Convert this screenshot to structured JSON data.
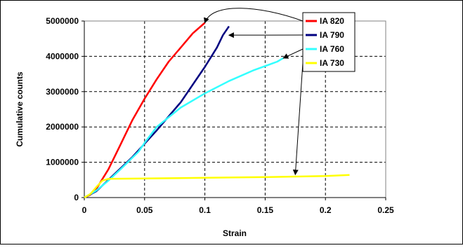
{
  "chart_data": {
    "type": "line",
    "title": "",
    "xlabel": "Strain",
    "ylabel": "Cumulative counts",
    "xlim": [
      0,
      0.25
    ],
    "ylim": [
      0,
      5000000
    ],
    "x_ticks": [
      0,
      0.05,
      0.1,
      0.15,
      0.2,
      0.25
    ],
    "x_tick_labels": [
      "0",
      "0.05",
      "0.1",
      "0.15",
      "0.2",
      "0.25"
    ],
    "y_ticks": [
      0,
      1000000,
      2000000,
      3000000,
      4000000,
      5000000
    ],
    "y_tick_labels": [
      "0",
      "1000000",
      "2000000",
      "3000000",
      "4000000",
      "5000000"
    ],
    "grid": "dashed",
    "legend_position": "top-right",
    "series": [
      {
        "name": "IA 820",
        "color": "#ff0000",
        "x": [
          0,
          0.005,
          0.01,
          0.02,
          0.03,
          0.04,
          0.05,
          0.06,
          0.07,
          0.08,
          0.09,
          0.1
        ],
        "y": [
          0,
          80000,
          250000,
          800000,
          1500000,
          2200000,
          2800000,
          3350000,
          3850000,
          4250000,
          4650000,
          4950000
        ]
      },
      {
        "name": "IA 790",
        "color": "#000080",
        "x": [
          0,
          0.01,
          0.02,
          0.04,
          0.06,
          0.08,
          0.1,
          0.11,
          0.115,
          0.12
        ],
        "y": [
          0,
          180000,
          500000,
          1150000,
          1900000,
          2700000,
          3700000,
          4250000,
          4600000,
          4850000
        ]
      },
      {
        "name": "IA 760",
        "color": "#33ffff",
        "x": [
          0,
          0.01,
          0.02,
          0.03,
          0.045,
          0.05,
          0.06,
          0.08,
          0.1,
          0.12,
          0.14,
          0.16,
          0.165
        ],
        "y": [
          0,
          200000,
          480000,
          800000,
          1300000,
          1550000,
          2000000,
          2550000,
          2950000,
          3300000,
          3600000,
          3850000,
          3950000
        ]
      },
      {
        "name": "IA 730",
        "color": "#ffff00",
        "x": [
          0,
          0.005,
          0.01,
          0.015,
          0.02,
          0.05,
          0.1,
          0.15,
          0.2,
          0.22
        ],
        "y": [
          0,
          100000,
          300000,
          480000,
          530000,
          540000,
          560000,
          580000,
          610000,
          640000
        ]
      }
    ],
    "annotations": [
      {
        "series": "IA 820",
        "target": [
          0.1,
          4950000
        ]
      },
      {
        "series": "IA 790",
        "target": [
          0.12,
          4600000
        ]
      },
      {
        "series": "IA 760",
        "target": [
          0.165,
          3950000
        ]
      },
      {
        "series": "IA 730",
        "target": [
          0.175,
          650000
        ]
      }
    ]
  }
}
